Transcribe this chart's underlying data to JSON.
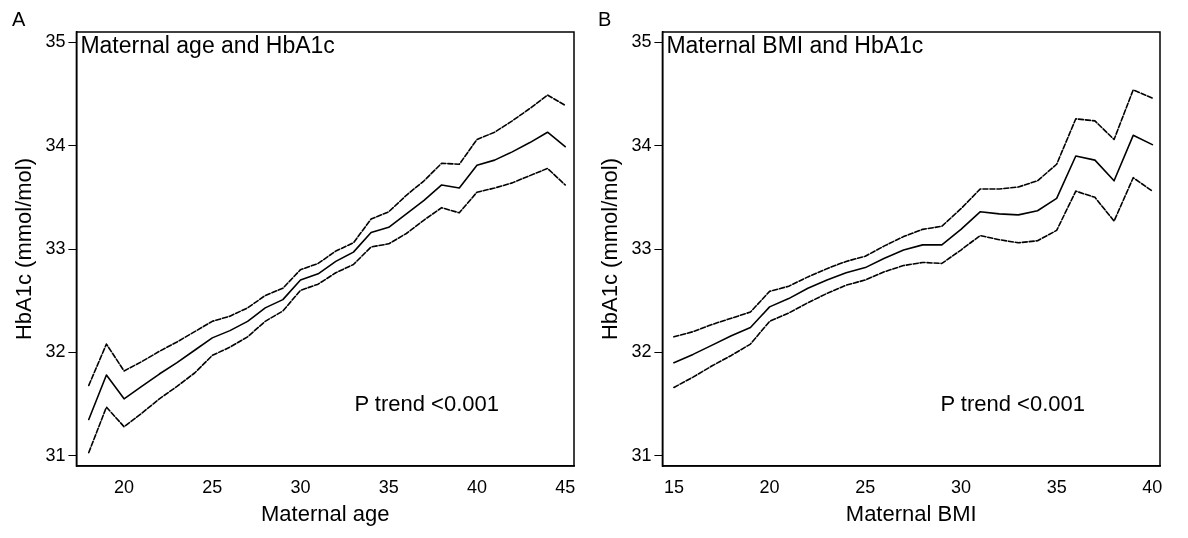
{
  "chart_data": [
    {
      "type": "line",
      "title": "Maternal age and HbA1c",
      "xlabel": "Maternal age",
      "ylabel": "HbA1c (mmol/mol)",
      "annotations": [
        "A",
        "P trend <0.001"
      ],
      "x": [
        18,
        19,
        20,
        21,
        22,
        23,
        24,
        25,
        26,
        27,
        28,
        29,
        30,
        31,
        32,
        33,
        34,
        35,
        36,
        37,
        38,
        39,
        40,
        41,
        42,
        43,
        44,
        45
      ],
      "series": [
        {
          "color": "#000000",
          "line_style": "solid",
          "values": [
            31.35,
            31.78,
            31.55,
            31.67,
            31.79,
            31.9,
            32.02,
            32.14,
            32.21,
            32.3,
            32.43,
            32.51,
            32.7,
            32.76,
            32.88,
            32.97,
            33.16,
            33.21,
            33.34,
            33.47,
            33.62,
            33.59,
            33.81,
            33.86,
            33.94,
            34.03,
            34.13,
            33.99
          ]
        },
        {
          "color": "#000000",
          "line_style": "dashed",
          "values": [
            31.03,
            31.47,
            31.28,
            31.41,
            31.55,
            31.67,
            31.8,
            31.97,
            32.05,
            32.15,
            32.3,
            32.4,
            32.6,
            32.66,
            32.77,
            32.85,
            33.02,
            33.05,
            33.15,
            33.28,
            33.4,
            33.35,
            33.55,
            33.59,
            33.64,
            33.71,
            33.78,
            33.62
          ]
        },
        {
          "color": "#000000",
          "line_style": "dashed",
          "values": [
            31.68,
            32.08,
            31.82,
            31.91,
            32.01,
            32.1,
            32.2,
            32.3,
            32.35,
            32.43,
            32.55,
            32.62,
            32.8,
            32.86,
            32.98,
            33.06,
            33.29,
            33.36,
            33.52,
            33.66,
            33.83,
            33.82,
            34.06,
            34.13,
            34.24,
            34.36,
            34.49,
            34.39
          ]
        }
      ],
      "xlim": [
        17.3,
        45.5
      ],
      "xticks": [
        20,
        25,
        30,
        35,
        40,
        45
      ],
      "ylim": [
        30.9,
        35.1
      ],
      "yticks": [
        31,
        32,
        33,
        34,
        35
      ],
      "grid": false,
      "legend": false,
      "marker": "none"
    },
    {
      "type": "line",
      "title": "Maternal BMI and HbA1c",
      "xlabel": "Maternal BMI",
      "ylabel": "HbA1c (mmol/mol)",
      "annotations": [
        "B",
        "P trend <0.001"
      ],
      "x": [
        15,
        16,
        17,
        18,
        19,
        20,
        21,
        22,
        23,
        24,
        25,
        26,
        27,
        28,
        29,
        30,
        31,
        32,
        33,
        34,
        35,
        36,
        37,
        38,
        39,
        40
      ],
      "series": [
        {
          "color": "#000000",
          "line_style": "solid",
          "values": [
            31.9,
            31.98,
            32.07,
            32.16,
            32.24,
            32.44,
            32.52,
            32.62,
            32.7,
            32.77,
            32.82,
            32.91,
            32.99,
            33.04,
            33.04,
            33.19,
            33.36,
            33.34,
            33.33,
            33.37,
            33.49,
            33.9,
            33.86,
            33.66,
            34.1,
            34.01
          ]
        },
        {
          "color": "#000000",
          "line_style": "dashed",
          "values": [
            31.66,
            31.76,
            31.87,
            31.97,
            32.08,
            32.3,
            32.38,
            32.48,
            32.57,
            32.65,
            32.7,
            32.78,
            32.84,
            32.87,
            32.86,
            32.99,
            33.13,
            33.09,
            33.06,
            33.08,
            33.18,
            33.56,
            33.5,
            33.27,
            33.69,
            33.56
          ]
        },
        {
          "color": "#000000",
          "line_style": "dashed",
          "values": [
            32.15,
            32.2,
            32.27,
            32.33,
            32.39,
            32.59,
            32.64,
            32.73,
            32.81,
            32.88,
            32.93,
            33.03,
            33.12,
            33.19,
            33.22,
            33.39,
            33.58,
            33.58,
            33.6,
            33.66,
            33.82,
            34.26,
            34.24,
            34.06,
            34.54,
            34.46
          ]
        }
      ],
      "xlim": [
        14.4,
        40.4
      ],
      "xticks": [
        15,
        20,
        25,
        30,
        35,
        40
      ],
      "ylim": [
        30.9,
        35.1
      ],
      "yticks": [
        31,
        32,
        33,
        34,
        35
      ],
      "grid": false,
      "legend": false,
      "marker": "none"
    }
  ]
}
